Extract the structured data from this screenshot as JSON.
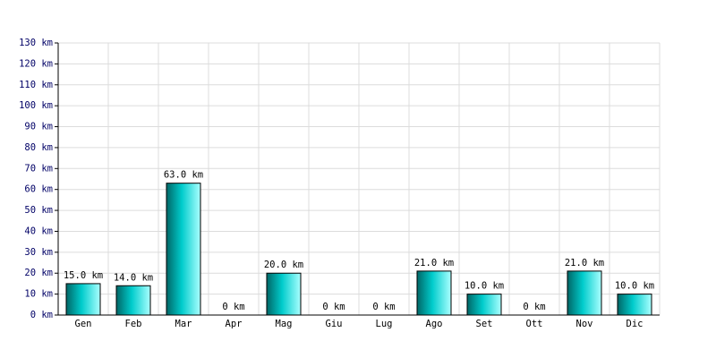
{
  "chart_data": {
    "type": "bar",
    "categories": [
      "Gen",
      "Feb",
      "Mar",
      "Apr",
      "Mag",
      "Giu",
      "Lug",
      "Ago",
      "Set",
      "Ott",
      "Nov",
      "Dic"
    ],
    "values": [
      15,
      14,
      63,
      0,
      20,
      0,
      0,
      21,
      10,
      0,
      21,
      10
    ],
    "value_labels": [
      "15.0 km",
      "14.0 km",
      "63.0 km",
      "0 km",
      "20.0 km",
      "0 km",
      "0 km",
      "21.0 km",
      "10.0 km",
      "0 km",
      "21.0 km",
      "10.0 km"
    ],
    "color": "#00cccc",
    "ylim": [
      0,
      130
    ],
    "yticks": [
      {
        "value": 0,
        "label": "0 km"
      },
      {
        "value": 10,
        "label": "10 km"
      },
      {
        "value": 20,
        "label": "20 km"
      },
      {
        "value": 30,
        "label": "30 km"
      },
      {
        "value": 40,
        "label": "40 km"
      },
      {
        "value": 50,
        "label": "50 km"
      },
      {
        "value": 60,
        "label": "60 km"
      },
      {
        "value": 70,
        "label": "70 km"
      },
      {
        "value": 80,
        "label": "80 km"
      },
      {
        "value": 90,
        "label": "90 km"
      },
      {
        "value": 100,
        "label": "100 km"
      },
      {
        "value": 110,
        "label": "110 km"
      },
      {
        "value": 120,
        "label": "120 km"
      },
      {
        "value": 130,
        "label": "130 km"
      }
    ],
    "grid": true
  }
}
